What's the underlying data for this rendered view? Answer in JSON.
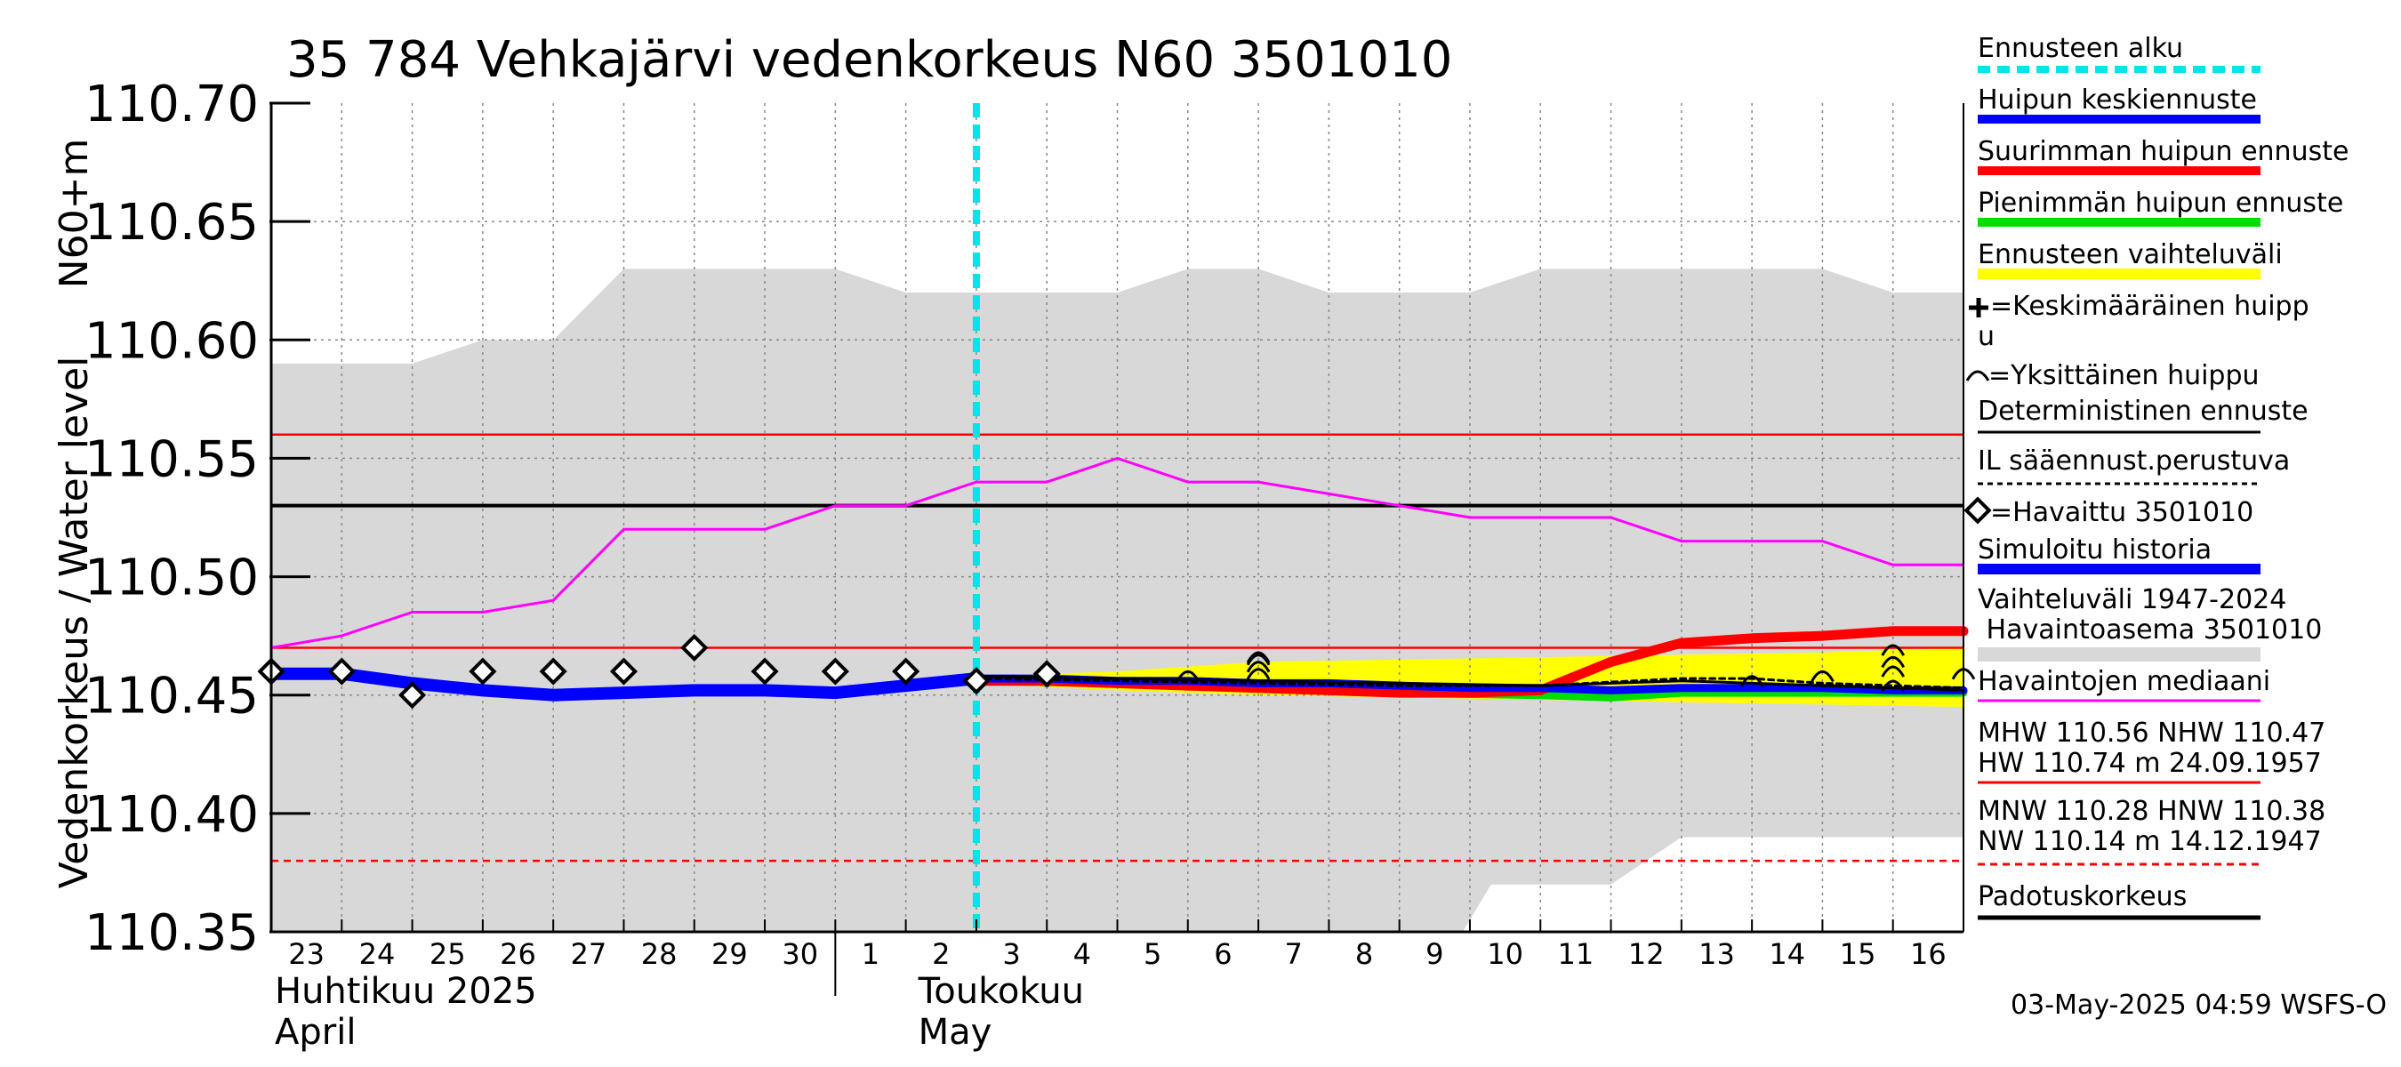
{
  "chart_data": {
    "type": "line",
    "title": "35 784 Vehkajärvi vedenkorkeus N60 3501010",
    "ylabel": "Vedenkorkeus / Water level",
    "ylabel_unit": "N60+m",
    "ylim": [
      110.35,
      110.7
    ],
    "yticks": [
      "110.35",
      "110.40",
      "110.45",
      "110.50",
      "110.55",
      "110.60",
      "110.65",
      "110.70"
    ],
    "ytick_values": [
      110.35,
      110.4,
      110.45,
      110.5,
      110.55,
      110.6,
      110.65,
      110.7
    ],
    "xlim": [
      0,
      24
    ],
    "x_day_labels": [
      "23",
      "24",
      "25",
      "26",
      "27",
      "28",
      "29",
      "30",
      "1",
      "2",
      "3",
      "4",
      "5",
      "6",
      "7",
      "8",
      "9",
      "10",
      "11",
      "12",
      "13",
      "14",
      "15",
      "16"
    ],
    "month_labels": [
      {
        "fi": "Huhtikuu  2025",
        "en": "April",
        "x": 0
      },
      {
        "fi": "Toukokuu",
        "en": "May",
        "x": 9
      }
    ],
    "month_divider_x": 8,
    "forecast_start_x": 10.0,
    "grid": true,
    "variation_range_upper": {
      "x": [
        0,
        1,
        2,
        3,
        4,
        5,
        6,
        7,
        8,
        9,
        10,
        11,
        12,
        13,
        14,
        15,
        16,
        17,
        18,
        19,
        20,
        21,
        22,
        23,
        24
      ],
      "y": [
        110.59,
        110.59,
        110.59,
        110.6,
        110.6,
        110.63,
        110.63,
        110.63,
        110.63,
        110.62,
        110.62,
        110.62,
        110.62,
        110.63,
        110.63,
        110.62,
        110.62,
        110.62,
        110.63,
        110.63,
        110.63,
        110.63,
        110.63,
        110.62,
        110.62
      ]
    },
    "variation_range_lower": {
      "x": [
        0,
        16.9,
        17.3,
        18,
        19,
        20,
        21,
        22,
        23,
        24
      ],
      "y": [
        110.35,
        110.35,
        110.37,
        110.37,
        110.37,
        110.39,
        110.39,
        110.39,
        110.39,
        110.39
      ]
    },
    "median_series": {
      "name": "Havaintojen mediaani",
      "x": [
        0,
        1,
        2,
        3,
        4,
        5,
        6,
        7,
        8,
        9,
        10,
        11,
        12,
        13,
        14,
        15,
        16,
        17,
        18,
        19,
        20,
        21,
        22,
        23,
        24
      ],
      "y": [
        110.47,
        110.475,
        110.485,
        110.485,
        110.49,
        110.52,
        110.52,
        110.52,
        110.53,
        110.53,
        110.54,
        110.54,
        110.55,
        110.54,
        110.54,
        110.535,
        110.53,
        110.525,
        110.525,
        110.525,
        110.515,
        110.515,
        110.515,
        110.505,
        110.505
      ]
    },
    "hlines": [
      {
        "name": "MHW",
        "y": 110.56,
        "color": "#ff0000",
        "style": "solid"
      },
      {
        "name": "NHW",
        "y": 110.47,
        "color": "#ff0000",
        "style": "solid"
      },
      {
        "name": "Padotuskorkeus",
        "y": 110.53,
        "color": "#000000",
        "style": "solid"
      },
      {
        "name": "NW line",
        "y": 110.38,
        "color": "#ff0000",
        "style": "dashed"
      }
    ],
    "simulated_history": {
      "name": "Simuloitu historia",
      "x": [
        0,
        1,
        2,
        3,
        4,
        5,
        6,
        7,
        8,
        9,
        10
      ],
      "y": [
        110.459,
        110.459,
        110.455,
        110.452,
        110.45,
        110.451,
        110.452,
        110.452,
        110.451,
        110.454,
        110.457
      ]
    },
    "observed": {
      "name": "Havaittu 3501010",
      "x": [
        0,
        1,
        2,
        3,
        4,
        5,
        6,
        7,
        8,
        9,
        10,
        11
      ],
      "y": [
        110.46,
        110.46,
        110.45,
        110.46,
        110.46,
        110.46,
        110.47,
        110.46,
        110.46,
        110.46,
        110.456,
        110.459
      ]
    },
    "forecast_range_upper": {
      "x": [
        10,
        12,
        14,
        16,
        18,
        20,
        22,
        24
      ],
      "y": [
        110.458,
        110.46,
        110.464,
        110.465,
        110.466,
        110.467,
        110.468,
        110.47
      ]
    },
    "forecast_range_lower": {
      "x": [
        10,
        12,
        14,
        16,
        18,
        20,
        22,
        24
      ],
      "y": [
        110.455,
        110.452,
        110.45,
        110.449,
        110.448,
        110.447,
        110.446,
        110.445
      ]
    },
    "mean_peak_forecast": {
      "name": "Huipun keskiennuste",
      "x": [
        10,
        11,
        12,
        13,
        14,
        15,
        16,
        17,
        18,
        19,
        20,
        21,
        22,
        23,
        24
      ],
      "y": [
        110.457,
        110.457,
        110.456,
        110.456,
        110.455,
        110.455,
        110.454,
        110.453,
        110.453,
        110.452,
        110.453,
        110.453,
        110.453,
        110.452,
        110.452
      ]
    },
    "max_peak_forecast": {
      "name": "Suurimman huipun ennuste",
      "x": [
        10,
        11,
        12,
        13,
        14,
        15,
        16,
        17,
        18,
        19,
        20,
        20.5,
        21,
        22,
        23,
        24
      ],
      "y": [
        110.456,
        110.456,
        110.455,
        110.454,
        110.453,
        110.452,
        110.451,
        110.451,
        110.452,
        110.464,
        110.472,
        110.473,
        110.474,
        110.475,
        110.477,
        110.477
      ]
    },
    "min_peak_forecast": {
      "name": "Pienimmän huipun ennuste",
      "x": [
        10,
        12,
        14,
        16,
        18,
        19,
        20,
        22,
        24
      ],
      "y": [
        110.456,
        110.455,
        110.453,
        110.451,
        110.45,
        110.449,
        110.451,
        110.451,
        110.451
      ]
    },
    "deterministic": {
      "name": "Deterministinen ennuste",
      "x": [
        10,
        12,
        14,
        16,
        18,
        20,
        21,
        22,
        24
      ],
      "y": [
        110.458,
        110.457,
        110.456,
        110.455,
        110.454,
        110.456,
        110.455,
        110.454,
        110.452
      ]
    },
    "il_forecast": {
      "name": "IL sääennust.perustuva",
      "x": [
        10,
        12,
        14,
        16,
        18,
        20,
        21,
        22,
        24
      ],
      "y": [
        110.457,
        110.456,
        110.455,
        110.454,
        110.454,
        110.457,
        110.457,
        110.455,
        110.453
      ]
    },
    "single_peaks": [
      {
        "x": 13,
        "y": 110.458
      },
      {
        "x": 14,
        "y": 110.459
      },
      {
        "x": 14,
        "y": 110.462
      },
      {
        "x": 14,
        "y": 110.465
      },
      {
        "x": 14,
        "y": 110.466
      },
      {
        "x": 21,
        "y": 110.456
      },
      {
        "x": 22,
        "y": 110.458
      },
      {
        "x": 23,
        "y": 110.454
      },
      {
        "x": 23,
        "y": 110.46
      },
      {
        "x": 23,
        "y": 110.464
      },
      {
        "x": 23,
        "y": 110.469
      },
      {
        "x": 24,
        "y": 110.459
      }
    ],
    "mean_peak_markers": [
      {
        "x": 10,
        "y": 110.456
      },
      {
        "x": 11,
        "y": 110.458
      }
    ],
    "colors": {
      "forecast_start": "#00e5e5",
      "mean_peak": "#0000ff",
      "max_peak": "#ff0000",
      "min_peak": "#00dd00",
      "forecast_range": "#ffff00",
      "variation": "#d8d8d8",
      "median": "#ff00ff",
      "simulated": "#0000ff",
      "grid": "#888888"
    }
  },
  "legend": {
    "forecast_start": "Ennusteen alku",
    "mean_peak": "Huipun keskiennuste",
    "max_peak": "Suurimman huipun ennuste",
    "min_peak": "Pienimmän huipun ennuste",
    "forecast_range": "Ennusteen vaihteluväli",
    "mean_peak_marker_line1": "=Keskimääräinen huipp",
    "mean_peak_marker_line2": "u",
    "single_peak": "=Yksittäinen huippu",
    "deterministic": "Deterministinen ennuste",
    "il": "IL sääennust.perustuva",
    "observed": "=Havaittu 3501010",
    "simulated": "Simuloitu historia",
    "variation_line1": "Vaihteluväli 1947-2024",
    "variation_line2": " Havaintoasema 3501010",
    "median": "Havaintojen mediaani",
    "hw_line1": "MHW 110.56 NHW 110.47",
    "hw_line2": "HW 110.74 m 24.09.1957",
    "nw_line1": "MNW 110.28 HNW 110.38",
    "nw_line2": "NW 110.14 m 14.12.1947",
    "padotus": "Padotuskorkeus"
  },
  "footer": {
    "timestamp": "03-May-2025 04:59 WSFS-O"
  }
}
